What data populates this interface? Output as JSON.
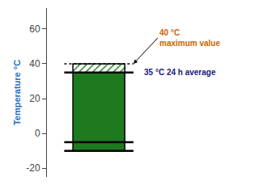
{
  "chart_data": {
    "type": "bar",
    "stacked": true,
    "categories": [
      null
    ],
    "base": -10,
    "series": [
      {
        "color": "#1e7a1e",
        "values": [
          5
        ]
      },
      {
        "color": "#1e7a1e",
        "values": [
          40
        ]
      },
      {
        "color": "#1e7a1e",
        "values": [
          5
        ]
      }
    ],
    "hlines": [
      {
        "value": 40,
        "line_style": "dotted"
      },
      {
        "value": 35,
        "line_style": "solid"
      },
      {
        "value": -5,
        "line_style": "solid"
      },
      {
        "value": -10,
        "line_style": "solid"
      }
    ],
    "ylabel": {
      "text": "Temperature °C",
      "color": "#1a6fc4"
    },
    "ylim": [
      -25,
      72
    ],
    "yticks": [
      -20,
      0,
      20,
      40,
      60
    ],
    "grid": false,
    "tick_labels": "y",
    "annotations": [
      {
        "text": "40 °C\nmaximum value",
        "y": 40,
        "color": "#cc6600",
        "arrow": true
      },
      {
        "text": "35 °C 24 h average",
        "y": 35,
        "color": "#1a1a80",
        "arrow": false
      }
    ]
  }
}
